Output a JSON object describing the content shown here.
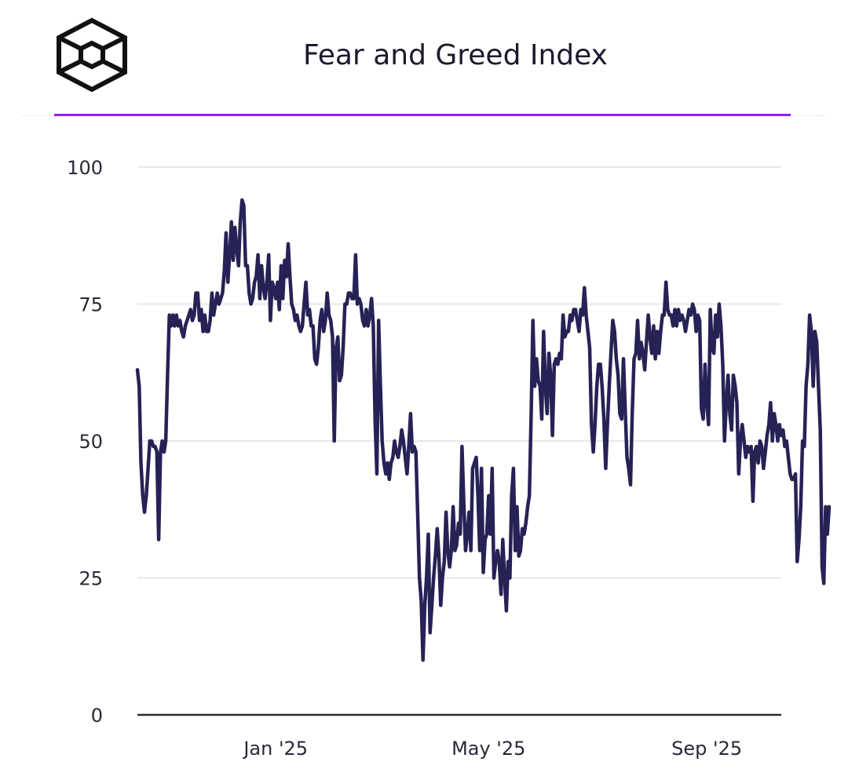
{
  "header": {
    "title": "Fear and Greed Index",
    "logo_icon": "cube-logo-icon"
  },
  "colors": {
    "accent": "#9b1cf0",
    "line": "#272255",
    "grid": "#e8e8ec",
    "axis": "#2b2b3a"
  },
  "chart_data": {
    "type": "line",
    "title": "Fear and Greed Index",
    "xlabel": "",
    "ylabel": "",
    "ylim": [
      0,
      100
    ],
    "xlim": [
      "2024-10-15",
      "2025-10-13"
    ],
    "y_ticks": [
      0,
      25,
      50,
      75,
      100
    ],
    "y_tick_labels": [
      "0",
      "25",
      "50",
      "75",
      "100"
    ],
    "x_tick_dates": [
      "2025-01-01",
      "2025-05-01",
      "2025-09-01"
    ],
    "x_tick_labels": [
      "Jan '25",
      "May '25",
      "Sep '25"
    ],
    "grid": true,
    "series": [
      {
        "name": "Fear and Greed Index",
        "x_start": "2024-10-15",
        "step_days": 1,
        "values": [
          63,
          60,
          46,
          40,
          37,
          40,
          45,
          50,
          50,
          49,
          49,
          48,
          32,
          48,
          50,
          48,
          50,
          62,
          73,
          71,
          73,
          71,
          73,
          71,
          72,
          70,
          69,
          71,
          72,
          73,
          74,
          72,
          73,
          77,
          77,
          72,
          74,
          70,
          73,
          70,
          70,
          72,
          77,
          73,
          75,
          77,
          75,
          76,
          77,
          81,
          88,
          79,
          84,
          90,
          83,
          89,
          85,
          82,
          90,
          94,
          93,
          82,
          82,
          77,
          75,
          76,
          79,
          80,
          84,
          76,
          82,
          78,
          76,
          79,
          84,
          72,
          79,
          78,
          76,
          79,
          74,
          82,
          76,
          83,
          80,
          86,
          80,
          75,
          74,
          72,
          73,
          71,
          70,
          71,
          75,
          79,
          73,
          74,
          71,
          71,
          65,
          64,
          67,
          72,
          74,
          70,
          72,
          77,
          73,
          72,
          69,
          50,
          67,
          69,
          61,
          62,
          67,
          75,
          75,
          77,
          77,
          76,
          76,
          84,
          75,
          76,
          75,
          72,
          71,
          74,
          71,
          73,
          76,
          71,
          54,
          44,
          72,
          60,
          50,
          46,
          44,
          46,
          43,
          46,
          47,
          50,
          48,
          47,
          49,
          52,
          50,
          47,
          44,
          49,
          55,
          48,
          49,
          48,
          37,
          25,
          21,
          10,
          20,
          25,
          33,
          15,
          20,
          25,
          29,
          34,
          29,
          20,
          25,
          28,
          37,
          30,
          27,
          30,
          38,
          30,
          31,
          35,
          33,
          49,
          39,
          30,
          33,
          37,
          30,
          45,
          46,
          47,
          40,
          30,
          45,
          26,
          32,
          33,
          40,
          33,
          45,
          25,
          28,
          30,
          28,
          22,
          32,
          25,
          19,
          28,
          25,
          40,
          45,
          30,
          38,
          29,
          30,
          34,
          33,
          35,
          38,
          40,
          55,
          72,
          60,
          65,
          61,
          60,
          54,
          70,
          60,
          55,
          66,
          62,
          51,
          64,
          65,
          64,
          66,
          65,
          73,
          69,
          70,
          70,
          73,
          72,
          74,
          74,
          72,
          70,
          74,
          73,
          78,
          73,
          70,
          67,
          53,
          48,
          53,
          60,
          64,
          64,
          60,
          54,
          45,
          53,
          60,
          66,
          72,
          70,
          65,
          62,
          55,
          54,
          65,
          56,
          47,
          45,
          42,
          55,
          65,
          66,
          72,
          65,
          68,
          66,
          63,
          68,
          73,
          69,
          66,
          71,
          65,
          70,
          66,
          70,
          73,
          73,
          79,
          74,
          73,
          73,
          71,
          74,
          71,
          74,
          72,
          73,
          72,
          70,
          72,
          74,
          73,
          75,
          74,
          70,
          73,
          72,
          56,
          54,
          64,
          57,
          53,
          74,
          67,
          66,
          73,
          69,
          75,
          71,
          64,
          50,
          57,
          62,
          55,
          52,
          62,
          60,
          57,
          44,
          50,
          53,
          50,
          47,
          49,
          48,
          49,
          39,
          48,
          49,
          46,
          50,
          49,
          45,
          48,
          51,
          53,
          57,
          50,
          55,
          53,
          50,
          53,
          51,
          52,
          49,
          50,
          47,
          44,
          43,
          43,
          44,
          28,
          32,
          38,
          50,
          49,
          60,
          64,
          73,
          70,
          60,
          70,
          68,
          60,
          52,
          27,
          24,
          38,
          33,
          38
        ]
      }
    ]
  }
}
